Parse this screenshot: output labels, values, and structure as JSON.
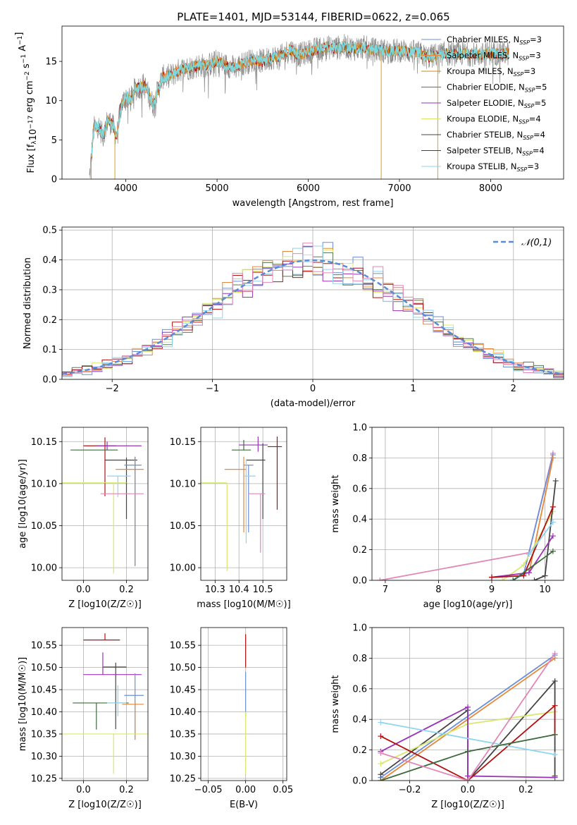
{
  "figure": {
    "title": "PLATE=1401, MJD=53144, FIBERID=0622, z=0.065"
  },
  "colors": {
    "Chabrier MILES": "#6a8fd8",
    "Salpeter MILES": "#e8873a",
    "Kroupa MILES": "#c98b1d",
    "Chabrier ELODIE": "#5a7a5a",
    "Salpeter ELODIE": "#9a32b5",
    "Kroupa ELODIE": "#d9e86c",
    "Chabrier STELIB": "#444444",
    "Salpeter STELIB": "#b01010",
    "Kroupa STELIB": "#8fd4f0",
    "Extra pink": "#e386b8",
    "Cyan": "#7fd7dc",
    "Dark green": "#3d6b3d"
  },
  "chart_data": [
    {
      "type": "line",
      "name": "spectrum",
      "xlabel": "wavelength [Angstrom, rest frame]",
      "ylabel": "Flux [f_λ 10^-17 erg cm^-2 s^-1 A^-1]",
      "xlim": [
        3300,
        8800
      ],
      "ylim": [
        0,
        19.5
      ],
      "xticks": [
        4000,
        5000,
        6000,
        7000,
        8000
      ],
      "yticks": [
        0,
        5,
        10,
        15
      ],
      "envelope": [
        [
          3600,
          0
        ],
        [
          3650,
          6.5
        ],
        [
          3700,
          6.8
        ],
        [
          3750,
          5.5
        ],
        [
          3800,
          7.5
        ],
        [
          3850,
          7.0
        ],
        [
          3900,
          5.5
        ],
        [
          3950,
          9.5
        ],
        [
          4000,
          10.5
        ],
        [
          4050,
          10.0
        ],
        [
          4100,
          11.5
        ],
        [
          4200,
          12.0
        ],
        [
          4300,
          9.5
        ],
        [
          4400,
          13.0
        ],
        [
          4500,
          13.2
        ],
        [
          4600,
          14.0
        ],
        [
          4700,
          14.2
        ],
        [
          4800,
          14.5
        ],
        [
          4900,
          14.5
        ],
        [
          5000,
          15.0
        ],
        [
          5100,
          14.5
        ],
        [
          5200,
          14.2
        ],
        [
          5300,
          14.8
        ],
        [
          5400,
          15.2
        ],
        [
          5500,
          15.0
        ],
        [
          5600,
          15.5
        ],
        [
          5700,
          15.6
        ],
        [
          5800,
          16.5
        ],
        [
          5900,
          15.8
        ],
        [
          6000,
          16.2
        ],
        [
          6100,
          16.6
        ],
        [
          6200,
          16.8
        ],
        [
          6300,
          16.7
        ],
        [
          6400,
          16.9
        ],
        [
          6500,
          16.6
        ],
        [
          6600,
          16.8
        ],
        [
          6700,
          16.5
        ],
        [
          6800,
          16.4
        ],
        [
          6900,
          16.3
        ],
        [
          7000,
          16.4
        ],
        [
          7100,
          16.3
        ],
        [
          7200,
          16.1
        ],
        [
          7300,
          15.5
        ],
        [
          7400,
          15.8
        ],
        [
          7500,
          16.0
        ],
        [
          7600,
          15.9
        ],
        [
          7700,
          16.0
        ],
        [
          7800,
          15.9
        ],
        [
          7900,
          15.8
        ],
        [
          8000,
          16.1
        ],
        [
          8100,
          16.0
        ],
        [
          8200,
          16.0
        ]
      ],
      "legend": [
        "Chabrier MILES, N_SSP=3",
        "Salpeter MILES, N_SSP=3",
        "Kroupa MILES, N_SSP=3",
        "Chabrier ELODIE, N_SSP=5",
        "Salpeter ELODIE, N_SSP=5",
        "Kroupa ELODIE, N_SSP=4",
        "Chabrier STELIB, N_SSP=4",
        "Salpeter STELIB, N_SSP=4",
        "Kroupa STELIB, N_SSP=3"
      ],
      "legend_placement": "upper-right"
    },
    {
      "type": "line",
      "name": "residual-histograms",
      "xlabel": "(data-model)/error",
      "ylabel": "Normed distribution",
      "xlim": [
        -2.5,
        2.5
      ],
      "ylim": [
        0,
        0.51
      ],
      "xticks": [
        -2,
        -1,
        0,
        1,
        2
      ],
      "yticks": [
        0.0,
        0.1,
        0.2,
        0.3,
        0.4,
        0.5
      ],
      "grid": true,
      "gaussian_label": "𝒩(0,1)",
      "histogram_bin_width": 0.1,
      "series_names": [
        "Chabrier MILES",
        "Salpeter MILES",
        "Kroupa ELODIE",
        "Salpeter ELODIE",
        "Chabrier ELODIE",
        "Salpeter STELIB",
        "Kroupa STELIB",
        "Extra pink"
      ]
    },
    {
      "type": "scatter",
      "name": "age-vs-Z",
      "xlabel": "Z [log10(Z/Z☉)]",
      "ylabel": "age [log10(age/yr)]",
      "xlim": [
        -0.1,
        0.3
      ],
      "ylim": [
        9.985,
        10.167
      ],
      "xticks": [
        0.0,
        0.2
      ],
      "yticks": [
        10.0,
        10.05,
        10.1,
        10.15
      ],
      "points": [
        {
          "x": 0.1,
          "y": 10.145,
          "xerr": [
            0.1,
            0.05
          ],
          "yerr": [
            0.06,
            0.01
          ],
          "color": "Salpeter STELIB"
        },
        {
          "x": 0.11,
          "y": 10.145,
          "xerr": [
            0.05,
            0.16
          ],
          "yerr": [
            0.005,
            0.005
          ],
          "color": "Salpeter ELODIE"
        },
        {
          "x": 0.06,
          "y": 10.14,
          "xerr": [
            0.12,
            0.1
          ],
          "yerr": [
            0.0,
            0.0
          ],
          "color": "Dark green"
        },
        {
          "x": 0.2,
          "y": 10.128,
          "xerr": [
            0.1,
            0.05
          ],
          "yerr": [
            0.07,
            0.003
          ],
          "color": "Chabrier STELIB"
        },
        {
          "x": 0.24,
          "y": 10.117,
          "xerr": [
            0.09,
            0.04
          ],
          "yerr": [
            0.115,
            0.015
          ],
          "color": "Salpeter MILES"
        },
        {
          "x": 0.24,
          "y": 10.122,
          "xerr": [
            0.05,
            0.03
          ],
          "yerr": [
            0.12,
            0.01
          ],
          "color": "Chabrier MILES"
        },
        {
          "x": 0.16,
          "y": 10.109,
          "xerr": [
            0.05,
            0.06
          ],
          "yerr": [
            0.025,
            0.0
          ],
          "color": "Kroupa STELIB"
        },
        {
          "x": 0.14,
          "y": 10.101,
          "xerr": [
            0.24,
            0.06
          ],
          "yerr": [
            0.108,
            0.0
          ],
          "color": "Kroupa ELODIE"
        },
        {
          "x": 0.15,
          "y": 10.088,
          "xerr": [
            0.07,
            0.13
          ],
          "yerr": [
            0.0,
            0.0
          ],
          "color": "Extra pink"
        }
      ]
    },
    {
      "type": "scatter",
      "name": "age-vs-mass",
      "xlabel": "mass [log10(M/M☉)]",
      "xlim": [
        10.24,
        10.6
      ],
      "ylim": [
        9.985,
        10.167
      ],
      "xticks": [
        10.3,
        10.4,
        10.5
      ],
      "yticks": [
        10.0,
        10.05,
        10.1,
        10.15
      ],
      "points": [
        {
          "x": 10.56,
          "y": 10.144,
          "xerr": [
            0.04,
            0.02
          ],
          "yerr": [
            0.075,
            0.012
          ],
          "color": "Salpeter STELIB"
        },
        {
          "x": 10.48,
          "y": 10.146,
          "xerr": [
            0.08,
            0.04
          ],
          "yerr": [
            0.008,
            0.01
          ],
          "color": "Salpeter ELODIE"
        },
        {
          "x": 10.42,
          "y": 10.14,
          "xerr": [
            0.05,
            0.03
          ],
          "yerr": [
            0.0,
            0.012
          ],
          "color": "Dark green"
        },
        {
          "x": 10.5,
          "y": 10.128,
          "xerr": [
            0.07,
            0.01
          ],
          "yerr": [
            0.07,
            0.02
          ],
          "color": "Chabrier STELIB"
        },
        {
          "x": 10.42,
          "y": 10.117,
          "xerr": [
            0.08,
            0.01
          ],
          "yerr": [
            0.075,
            0.015
          ],
          "color": "Salpeter MILES"
        },
        {
          "x": 10.44,
          "y": 10.122,
          "xerr": [
            0.02,
            0.02
          ],
          "yerr": [
            0.08,
            0.0
          ],
          "color": "Chabrier MILES"
        },
        {
          "x": 10.43,
          "y": 10.109,
          "xerr": [
            0.01,
            0.04
          ],
          "yerr": [
            0.08,
            0.02
          ],
          "color": "Kroupa STELIB"
        },
        {
          "x": 10.35,
          "y": 10.101,
          "xerr": [
            0.11,
            0.0
          ],
          "yerr": [
            0.105,
            0.0
          ],
          "color": "Kroupa ELODIE"
        },
        {
          "x": 10.49,
          "y": 10.088,
          "xerr": [
            0.05,
            0.02
          ],
          "yerr": [
            0.07,
            0.0
          ],
          "color": "Extra pink"
        }
      ]
    },
    {
      "type": "line",
      "name": "mass-weight-vs-age",
      "xlabel": "age [log10(age/yr)]",
      "ylabel": "mass weight",
      "xlim": [
        6.75,
        10.35
      ],
      "ylim": [
        0,
        1.0
      ],
      "xticks": [
        7,
        8,
        9,
        10
      ],
      "yticks": [
        0.0,
        0.2,
        0.4,
        0.6,
        0.8,
        1.0
      ],
      "grid": true,
      "series": [
        {
          "color": "Extra pink",
          "x": [
            6.9,
            9.7,
            10.15
          ],
          "y": [
            0.0,
            0.18,
            0.83
          ]
        },
        {
          "color": "Chabrier MILES",
          "x": [
            9.4,
            9.6,
            10.15
          ],
          "y": [
            0.0,
            0.04,
            0.82
          ]
        },
        {
          "color": "Salpeter MILES",
          "x": [
            9.7,
            10.15
          ],
          "y": [
            0.05,
            0.8
          ]
        },
        {
          "color": "Kroupa ELODIE",
          "x": [
            9.2,
            9.6,
            10.15
          ],
          "y": [
            0.0,
            0.1,
            0.45
          ]
        },
        {
          "color": "Chabrier STELIB",
          "x": [
            9.8,
            10.0,
            10.2
          ],
          "y": [
            0.0,
            0.03,
            0.65
          ]
        },
        {
          "color": "Salpeter ELODIE",
          "x": [
            9.0,
            9.7,
            10.15
          ],
          "y": [
            0.02,
            0.05,
            0.29
          ]
        },
        {
          "color": "Salpeter STELIB",
          "x": [
            9.0,
            9.6,
            10.15
          ],
          "y": [
            0.02,
            0.03,
            0.48
          ]
        },
        {
          "color": "Kroupa STELIB",
          "x": [
            9.7,
            10.15
          ],
          "y": [
            0.17,
            0.38
          ]
        },
        {
          "color": "Dark green",
          "x": [
            9.4,
            10.15
          ],
          "y": [
            0.0,
            0.19
          ]
        }
      ]
    },
    {
      "type": "scatter",
      "name": "mass-vs-Z",
      "xlabel": "Z [log10(Z/Z☉)]",
      "ylabel": "mass [log10(M/M☉)]",
      "xlim": [
        -0.1,
        0.3
      ],
      "ylim": [
        10.245,
        10.59
      ],
      "xticks": [
        0.0,
        0.2
      ],
      "yticks": [
        10.25,
        10.3,
        10.35,
        10.4,
        10.45,
        10.5,
        10.55
      ],
      "points": [
        {
          "x": 0.1,
          "y": 10.562,
          "xerr": [
            0.1,
            0.07
          ],
          "yerr": [
            0.0,
            0.015
          ],
          "color": "Salpeter STELIB"
        },
        {
          "x": 0.15,
          "y": 10.501,
          "xerr": [
            0.06,
            0.05
          ],
          "yerr": [
            0.14,
            0.01
          ],
          "color": "Chabrier STELIB"
        },
        {
          "x": 0.09,
          "y": 10.484,
          "xerr": [
            0.09,
            0.18
          ],
          "yerr": [
            0.0,
            0.05
          ],
          "color": "Salpeter ELODIE"
        },
        {
          "x": 0.24,
          "y": 10.437,
          "xerr": [
            0.05,
            0.04
          ],
          "yerr": [
            0.1,
            0.05
          ],
          "color": "Chabrier MILES"
        },
        {
          "x": 0.06,
          "y": 10.42,
          "xerr": [
            0.11,
            0.15
          ],
          "yerr": [
            0.06,
            0.0
          ],
          "color": "Dark green"
        },
        {
          "x": 0.24,
          "y": 10.417,
          "xerr": [
            0.06,
            0.04
          ],
          "yerr": [
            0.08,
            0.005
          ],
          "color": "Salpeter MILES"
        },
        {
          "x": 0.14,
          "y": 10.35,
          "xerr": [
            0.24,
            0.2
          ],
          "yerr": [
            0.09,
            0.0
          ],
          "color": "Kroupa ELODIE"
        },
        {
          "x": 0.16,
          "y": 10.42,
          "xerr": [
            0.05,
            0.04
          ],
          "yerr": [
            0.03,
            0.04
          ],
          "color": "Kroupa STELIB"
        }
      ]
    },
    {
      "type": "scatter",
      "name": "mass-vs-EBV",
      "xlabel": "E(B-V)",
      "xlim": [
        -0.06,
        0.055
      ],
      "ylim": [
        10.245,
        10.59
      ],
      "xticks": [
        -0.05,
        0.0,
        0.05
      ],
      "yticks": [
        10.25,
        10.3,
        10.35,
        10.4,
        10.45,
        10.5,
        10.55
      ],
      "points": [
        {
          "x": 0.0,
          "y": 10.56,
          "xerr": [
            0,
            0
          ],
          "yerr": [
            0.06,
            0.015
          ],
          "color": "Salpeter STELIB"
        },
        {
          "x": 0.0,
          "y": 10.44,
          "xerr": [
            0,
            0
          ],
          "yerr": [
            0.05,
            0.05
          ],
          "color": "Chabrier MILES"
        },
        {
          "x": 0.0,
          "y": 10.35,
          "xerr": [
            0,
            0
          ],
          "yerr": [
            0.09,
            0.05
          ],
          "color": "Kroupa ELODIE"
        }
      ]
    },
    {
      "type": "line",
      "name": "mass-weight-vs-Z",
      "xlabel": "Z [log10(Z/Z☉)]",
      "ylabel": "mass weight",
      "xlim": [
        -0.33,
        0.33
      ],
      "ylim": [
        0,
        1.0
      ],
      "xticks": [
        -0.2,
        0.0,
        0.2
      ],
      "yticks": [
        0.0,
        0.2,
        0.4,
        0.6,
        0.8,
        1.0
      ],
      "grid": true,
      "series": [
        {
          "color": "Chabrier MILES",
          "x": [
            -0.3,
            0.3
          ],
          "y": [
            0.02,
            0.82
          ]
        },
        {
          "color": "Salpeter MILES",
          "x": [
            -0.3,
            0.3
          ],
          "y": [
            0.0,
            0.8
          ]
        },
        {
          "color": "Chabrier STELIB",
          "x": [
            -0.3,
            0.0,
            0.0,
            0.3,
            0.3
          ],
          "y": [
            0.04,
            0.46,
            0.0,
            0.65,
            0.03
          ]
        },
        {
          "color": "Kroupa ELODIE",
          "x": [
            -0.3,
            0.0,
            0.3
          ],
          "y": [
            0.11,
            0.37,
            0.45
          ]
        },
        {
          "color": "Salpeter ELODIE",
          "x": [
            -0.3,
            0.0,
            0.0,
            0.3
          ],
          "y": [
            0.19,
            0.48,
            0.03,
            0.02
          ]
        },
        {
          "color": "Salpeter STELIB",
          "x": [
            -0.3,
            0.0,
            0.3,
            0.3
          ],
          "y": [
            0.29,
            0.0,
            0.49,
            0.3
          ]
        },
        {
          "color": "Kroupa STELIB",
          "x": [
            -0.3,
            0.3
          ],
          "y": [
            0.38,
            0.17
          ]
        },
        {
          "color": "Dark green",
          "x": [
            -0.3,
            0.0,
            0.3
          ],
          "y": [
            0.0,
            0.19,
            0.3
          ]
        },
        {
          "color": "Extra pink",
          "x": [
            -0.3,
            0.0,
            0.3
          ],
          "y": [
            0.18,
            0.0,
            0.83
          ]
        }
      ]
    }
  ]
}
